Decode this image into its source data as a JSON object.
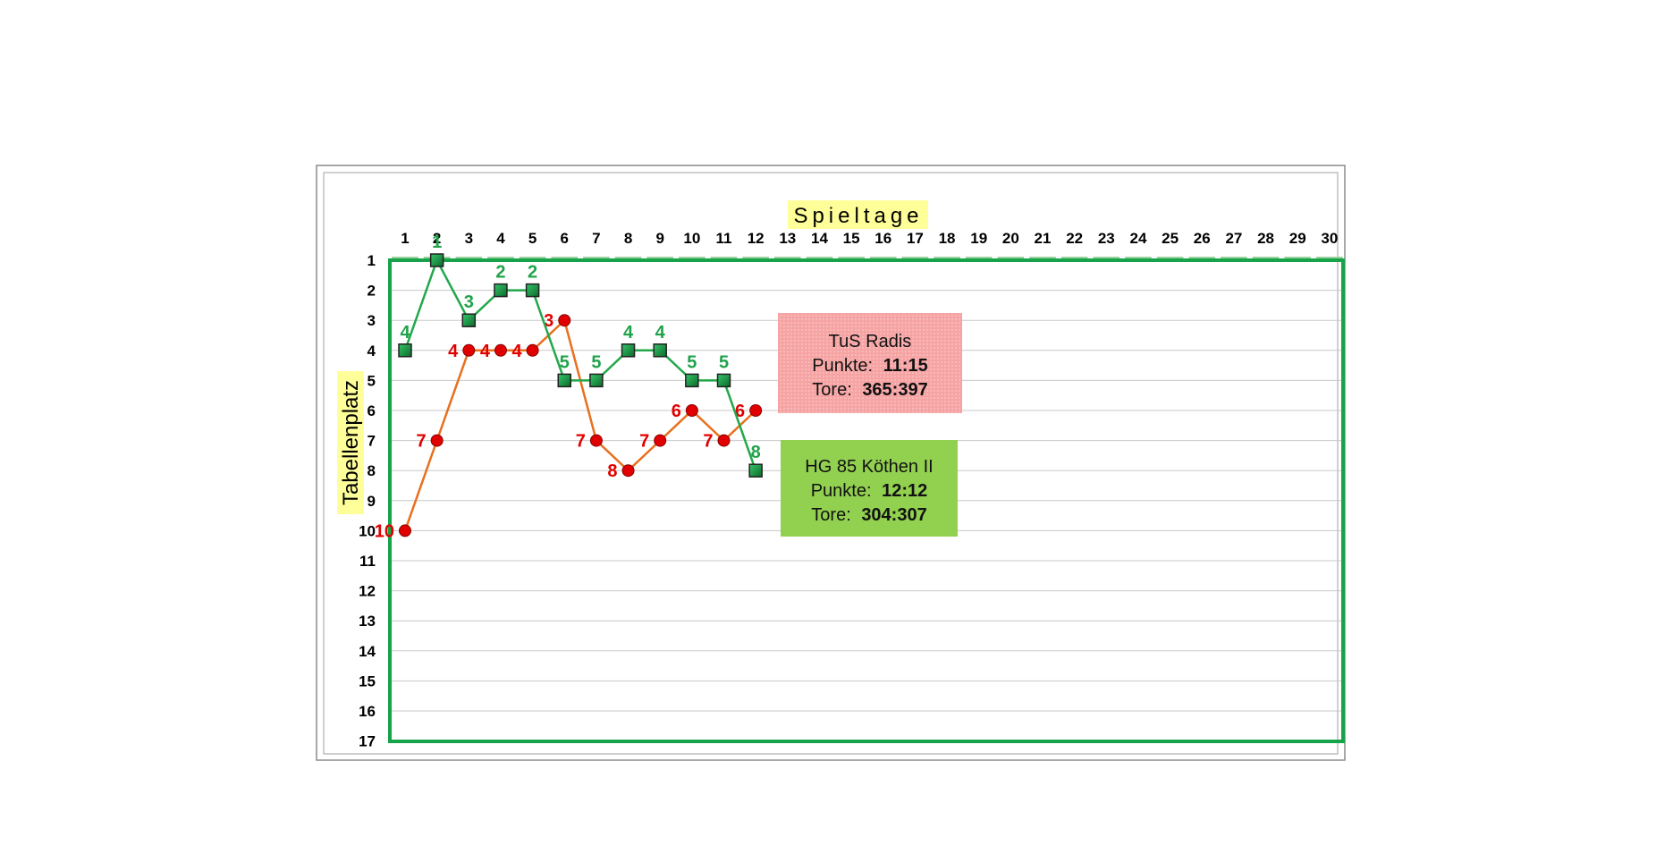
{
  "chart_data": {
    "type": "line",
    "title": "Spieltage",
    "ylabel": "Tabellenplatz",
    "x_categories": [
      "1",
      "2",
      "3",
      "4",
      "5",
      "6",
      "7",
      "8",
      "9",
      "10",
      "11",
      "12",
      "13",
      "14",
      "15",
      "16",
      "17",
      "18",
      "19",
      "20",
      "21",
      "22",
      "23",
      "24",
      "25",
      "26",
      "27",
      "28",
      "29",
      "30"
    ],
    "y_ticks": [
      "1",
      "2",
      "3",
      "4",
      "5",
      "6",
      "7",
      "8",
      "9",
      "10",
      "11",
      "12",
      "13",
      "14",
      "15",
      "16",
      "17"
    ],
    "ylim": [
      1,
      17
    ],
    "y_inverted": true,
    "x_axis_position": "top",
    "grid": true,
    "series": [
      {
        "name": "TuS Radis",
        "color": "#e8701e",
        "marker_color": "#e00000",
        "label_color": "#e00000",
        "marker": "circle",
        "x": [
          1,
          2,
          3,
          4,
          5,
          6,
          7,
          8,
          9,
          10,
          11,
          12
        ],
        "values": [
          10,
          7,
          4,
          4,
          4,
          3,
          7,
          8,
          7,
          6,
          7,
          6
        ]
      },
      {
        "name": "HG 85 Köthen II",
        "color": "#22a84a",
        "marker_color": "#1a8a3a",
        "label_color": "#1fa34a",
        "marker": "square",
        "x": [
          1,
          2,
          3,
          4,
          5,
          6,
          7,
          8,
          9,
          10,
          11,
          12
        ],
        "values": [
          4,
          1,
          3,
          2,
          2,
          5,
          5,
          4,
          4,
          5,
          5,
          8
        ]
      }
    ]
  },
  "info_boxes": [
    {
      "team": "TuS Radis",
      "points_label": "Punkte:",
      "points_value": "11:15",
      "goals_label": "Tore:",
      "goals_value": "365:397",
      "fill": "#f4a0a0"
    },
    {
      "team": "HG 85 Köthen II",
      "points_label": "Punkte:",
      "points_value": "12:12",
      "goals_label": "Tore:",
      "goals_value": "304:307",
      "fill": "#92d050"
    }
  ],
  "colors": {
    "plot_border": "#16a34a",
    "title_highlight": "#ffff99",
    "gridline": "#c8c8c8"
  }
}
